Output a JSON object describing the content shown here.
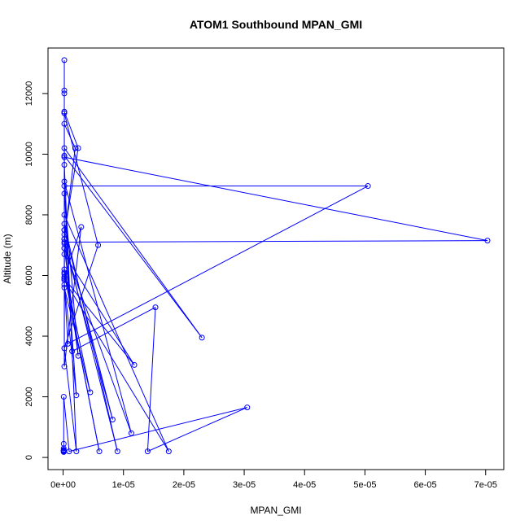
{
  "chart_data": {
    "type": "line",
    "title": "ATOM1 Southbound MPAN_GMI",
    "xlabel": "MPAN_GMI",
    "ylabel": "Altitude (m)",
    "xlim": [
      -2.5e-06,
      7.3e-05
    ],
    "ylim": [
      -400,
      13500
    ],
    "x_ticks": [
      0,
      1e-05,
      2e-05,
      3e-05,
      4e-05,
      5e-05,
      6e-05,
      7e-05
    ],
    "x_tick_labels": [
      "0e+00",
      "1e-05",
      "2e-05",
      "3e-05",
      "4e-05",
      "5e-05",
      "6e-05",
      "7e-05"
    ],
    "y_ticks": [
      0,
      2000,
      4000,
      6000,
      8000,
      10000,
      12000
    ],
    "y_tick_labels": [
      "0",
      "2000",
      "4000",
      "6000",
      "8000",
      "10000",
      "12000"
    ],
    "grid": false,
    "legend": "none",
    "series": [
      {
        "color": "#0000ff",
        "marker": "open-circle",
        "x": [
          1e-07,
          1e-07,
          1e-07,
          1e-07,
          1e-07,
          1e-07,
          1e-07,
          1e-07,
          1e-07,
          1e-07,
          1e-06,
          3.05e-05,
          1.4e-05,
          1.53e-05,
          1.5e-06,
          2e-07,
          5.05e-05,
          8e-07,
          2e-07,
          2.2e-06,
          2e-07,
          2e-07,
          1.18e-05,
          2e-07,
          2e-07,
          4.5e-06,
          2e-07,
          2e-07,
          2.5e-06,
          2e-07,
          2e-07,
          9e-06,
          2e-07,
          2e-07,
          3e-06,
          2e-07,
          2e-07,
          8.2e-06,
          2e-07,
          2e-07,
          6e-06,
          2e-07,
          2e-07,
          1.75e-05,
          2e-07,
          2e-07,
          2.2e-06,
          2e-07,
          2e-07,
          5.8e-06,
          2e-07,
          2e-07,
          1.13e-05,
          2e-07,
          2e-07,
          2.3e-05,
          2e-07,
          2e-07,
          7.03e-05,
          2e-07,
          2e-07,
          2e-06,
          2e-07,
          2e-07,
          2.5e-06,
          2e-07,
          2e-07,
          2e-07,
          2e-07
        ],
        "y": [
          180,
          190,
          200,
          210,
          220,
          230,
          250,
          300,
          450,
          2000,
          200,
          1650,
          200,
          4950,
          3500,
          8950,
          8950,
          3750,
          5700,
          2050,
          7500,
          5900,
          3050,
          6700,
          6200,
          2150,
          5600,
          8700,
          3350,
          6900,
          7700,
          200,
          7200,
          3000,
          7600,
          5950,
          7050,
          1250,
          7500,
          6100,
          200,
          6050,
          5850,
          200,
          8000,
          3600,
          200,
          9650,
          11350,
          7000,
          3600,
          9100,
          800,
          6900,
          10200,
          3950,
          9950,
          7100,
          7150,
          9900,
          7200,
          10200,
          11000,
          7350,
          10200,
          11400,
          12000,
          12100,
          13100
        ]
      }
    ]
  }
}
